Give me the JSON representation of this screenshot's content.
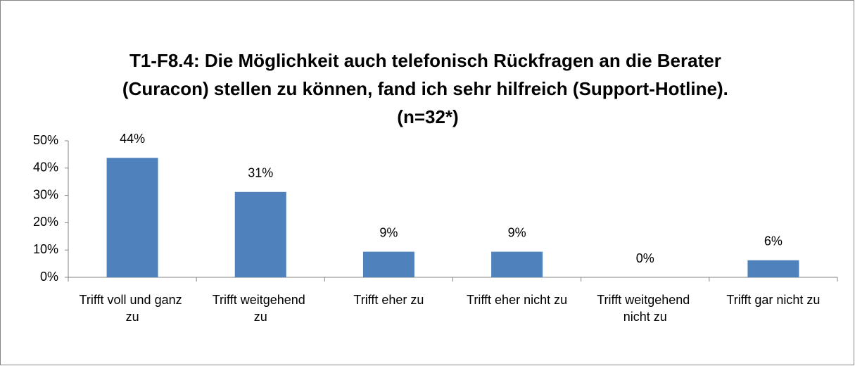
{
  "chart_data": {
    "type": "bar",
    "title": "T1-F8.4: Die Möglichkeit auch telefonisch Rückfragen an die Berater (Curacon) stellen zu können, fand ich sehr hilfreich (Support-Hotline). (n=32*)",
    "categories": [
      "Trifft voll und ganz zu",
      "Trifft weitgehend zu",
      "Trifft eher zu",
      "Trifft eher nicht zu",
      "Trifft weitgehend nicht zu",
      "Trifft gar nicht zu"
    ],
    "values": [
      43.75,
      31.25,
      9.375,
      9.375,
      0,
      6.25
    ],
    "value_labels": [
      "44%",
      "31%",
      "9%",
      "9%",
      "0%",
      "6%"
    ],
    "color": "#4f81bd",
    "ylim": [
      0,
      50
    ],
    "yticks": [
      {
        "value": 0,
        "label": "0%"
      },
      {
        "value": 10,
        "label": "10%"
      },
      {
        "value": 20,
        "label": "20%"
      },
      {
        "value": 30,
        "label": "30%"
      },
      {
        "value": 40,
        "label": "40%"
      },
      {
        "value": 50,
        "label": "50%"
      }
    ],
    "grid": false
  }
}
